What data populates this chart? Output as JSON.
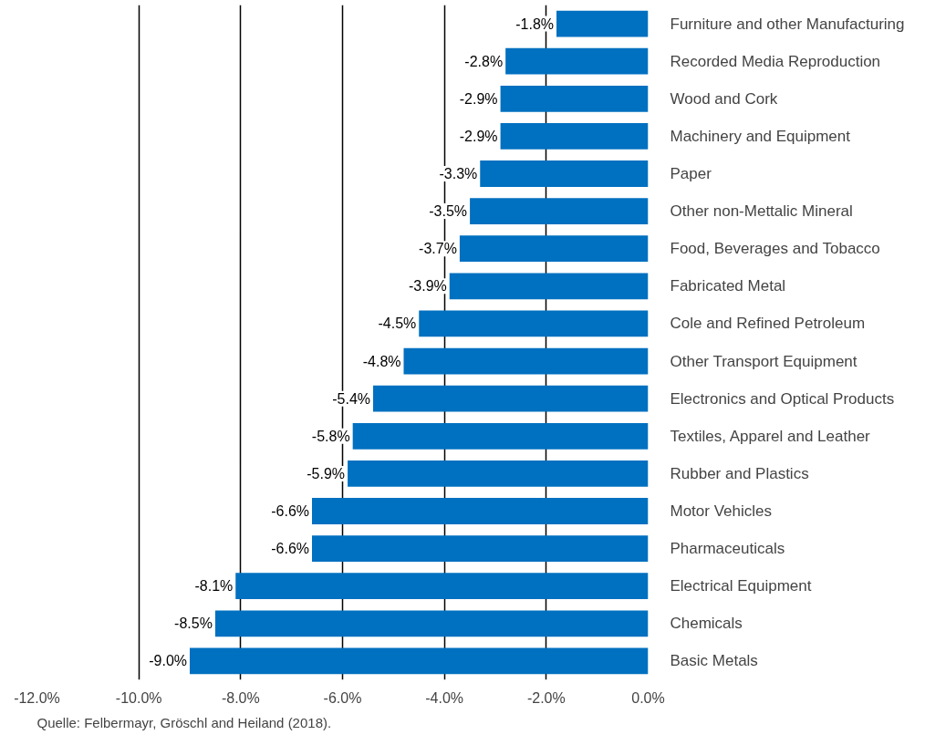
{
  "chart_data": {
    "type": "bar",
    "orientation": "horizontal",
    "categories": [
      "Furniture and other Manufacturing",
      "Recorded Media Reproduction",
      "Wood and Cork",
      "Machinery and Equipment",
      "Paper",
      "Other non-Mettalic Mineral",
      "Food, Beverages and Tobacco",
      "Fabricated Metal",
      "Cole and Refined Petroleum",
      "Other Transport Equipment",
      "Electronics and Optical Products",
      "Textiles, Apparel and Leather",
      "Rubber and Plastics",
      "Motor Vehicles",
      "Pharmaceuticals",
      "Electrical Equipment",
      "Chemicals",
      "Basic Metals"
    ],
    "values": [
      -1.8,
      -2.8,
      -2.9,
      -2.9,
      -3.3,
      -3.5,
      -3.7,
      -3.9,
      -4.5,
      -4.8,
      -5.4,
      -5.8,
      -5.9,
      -6.6,
      -6.6,
      -8.1,
      -8.5,
      -9.0
    ],
    "value_labels": [
      "-1.8%",
      "-2.8%",
      "-2.9%",
      "-2.9%",
      "-3.3%",
      "-3.5%",
      "-3.7%",
      "-3.9%",
      "-4.5%",
      "-4.8%",
      "-5.4%",
      "-5.8%",
      "-5.9%",
      "-6.6%",
      "-6.6%",
      "-8.1%",
      "-8.5%",
      "-9.0%"
    ],
    "color": "#0070c0",
    "xlim": [
      -12,
      0
    ],
    "xticks": [
      {
        "value": -12,
        "label": "-12.0%"
      },
      {
        "value": -10,
        "label": "-10.0%"
      },
      {
        "value": -8,
        "label": "-8.0%"
      },
      {
        "value": -6,
        "label": "-6.0%"
      },
      {
        "value": -4,
        "label": "-4.0%"
      },
      {
        "value": -2,
        "label": "-2.0%"
      },
      {
        "value": 0,
        "label": "0.0%"
      }
    ],
    "grid": "x",
    "annotations": [
      "Quelle: Felbermayr, Gröschl and Heiland (2018)."
    ]
  }
}
